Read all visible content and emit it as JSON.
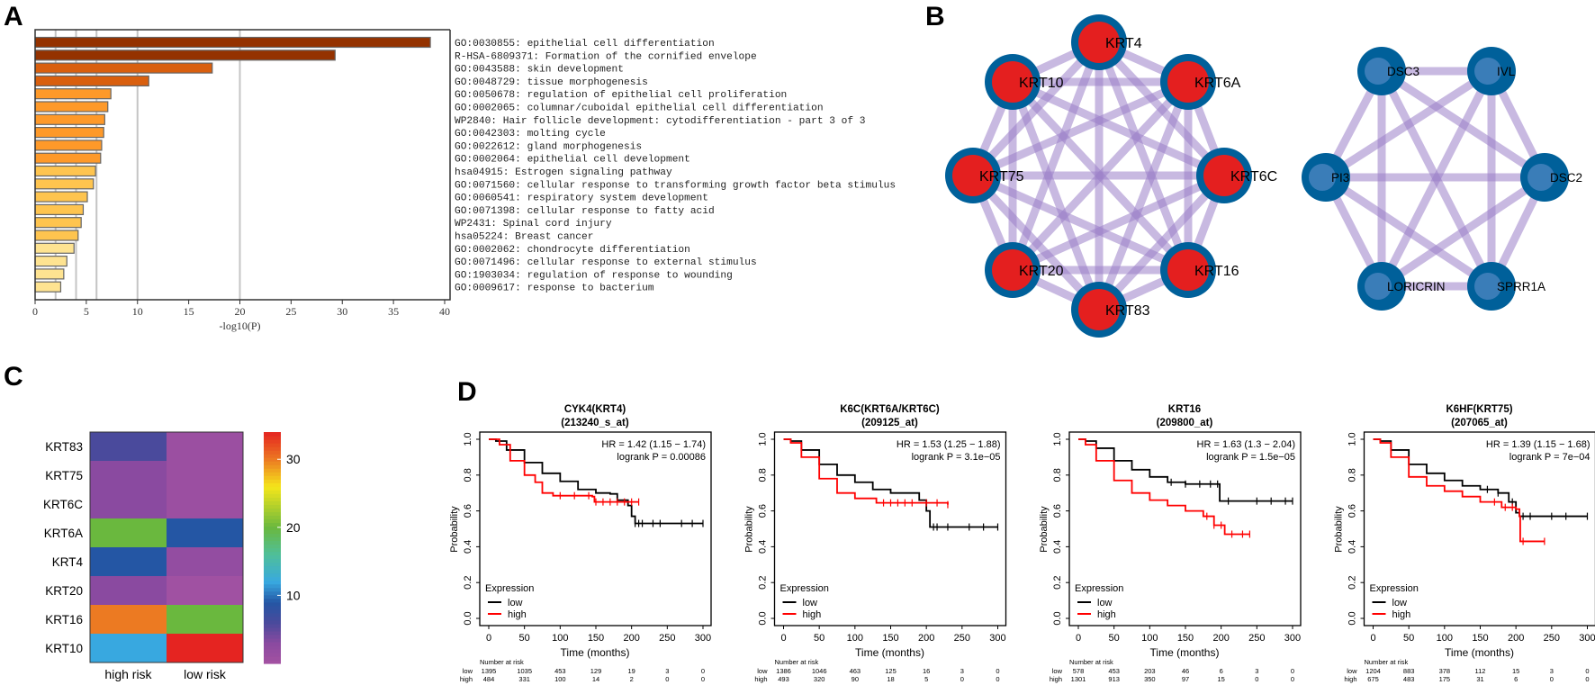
{
  "panel_labels": [
    "A",
    "B",
    "C",
    "D"
  ],
  "colors": {
    "bar_tiers": [
      "#943200",
      "#d95f0e",
      "#fe9929",
      "#fec44f",
      "#fee391"
    ],
    "node_outer": "#00609a",
    "node_inner_blue": "#3a7db8",
    "node_inner_red": "#e41f1f",
    "edge": "#9b7fc8",
    "km_low": "#000000",
    "km_high": "#ff0000"
  },
  "chart_data": [
    {
      "id": "A",
      "type": "bar",
      "orientation": "horizontal",
      "xlabel": "-log10(P)",
      "xlim": [
        0,
        40
      ],
      "xticks": [
        0,
        5,
        10,
        15,
        20,
        25,
        30,
        35,
        40
      ],
      "gridlines": [
        2,
        4,
        6,
        10,
        20
      ],
      "categories": [
        "GO:0030855: epithelial cell differentiation",
        "R-HSA-6809371: Formation of the cornified envelope",
        "GO:0043588: skin development",
        "GO:0048729: tissue morphogenesis",
        "GO:0050678: regulation of epithelial cell proliferation",
        "GO:0002065: columnar/cuboidal epithelial cell differentiation",
        "WP2840: Hair follicle development: cytodifferentiation - part 3 of 3",
        "GO:0042303: molting cycle",
        "GO:0022612: gland morphogenesis",
        "GO:0002064: epithelial cell development",
        "hsa04915: Estrogen signaling pathway",
        "GO:0071560: cellular response to transforming growth factor beta stimulus",
        "GO:0060541: respiratory system development",
        "GO:0071398: cellular response to fatty acid",
        "WP2431: Spinal cord injury",
        "hsa05224: Breast cancer",
        "GO:0002062: chondrocyte differentiation",
        "GO:0071496: cellular response to external stimulus",
        "GO:1903034: regulation of response to wounding",
        "GO:0009617: response to bacterium"
      ],
      "values": [
        38.6,
        29.3,
        17.3,
        11.1,
        7.4,
        7.1,
        6.8,
        6.7,
        6.5,
        6.4,
        5.9,
        5.7,
        5.1,
        4.7,
        4.5,
        4.2,
        3.8,
        3.1,
        2.8,
        2.5
      ],
      "color_tier": [
        0,
        0,
        1,
        1,
        2,
        2,
        2,
        2,
        2,
        2,
        3,
        3,
        3,
        3,
        3,
        3,
        4,
        4,
        4,
        4
      ]
    },
    {
      "id": "C",
      "type": "heatmap",
      "rows": [
        "KRT83",
        "KRT75",
        "KRT6C",
        "KRT6A",
        "KRT4",
        "KRT20",
        "KRT16",
        "KRT10"
      ],
      "columns": [
        "high risk",
        "low risk"
      ],
      "values": [
        [
          6,
          1
        ],
        [
          3,
          1
        ],
        [
          3,
          1
        ],
        [
          20,
          9
        ],
        [
          9,
          2
        ],
        [
          3,
          0.5
        ],
        [
          30,
          20
        ],
        [
          12,
          34
        ]
      ],
      "colorbar_range": [
        0,
        34
      ],
      "colorbar_ticks": [
        10,
        20,
        30
      ],
      "colormap": [
        [
          0,
          "#a452a2"
        ],
        [
          3,
          "#8a4aa0"
        ],
        [
          6,
          "#4a4a9c"
        ],
        [
          9,
          "#2456a4"
        ],
        [
          12,
          "#38a8e0"
        ],
        [
          16,
          "#4fbf9a"
        ],
        [
          20,
          "#6ab83e"
        ],
        [
          26,
          "#f5e61a"
        ],
        [
          30,
          "#ec7a22"
        ],
        [
          34,
          "#e52421"
        ]
      ]
    },
    {
      "id": "D1",
      "type": "line",
      "subtype": "kaplan-meier",
      "title": [
        "CYK4(KRT4)",
        "(213240_s_at)"
      ],
      "hr_text": "HR = 1.42 (1.15 − 1.74)",
      "p_text": "logrank P = 0.00086",
      "xlabel": "Time (months)",
      "ylabel": "Probability",
      "xlim": [
        0,
        300
      ],
      "ylim": [
        0,
        1
      ],
      "xticks": [
        "0",
        "50",
        "100",
        "150",
        "200",
        "250",
        "300"
      ],
      "yticks": [
        "0.0",
        "0.2",
        "0.4",
        "0.6",
        "0.8",
        "1.0"
      ],
      "legend_title": "Expression",
      "legend": [
        "low",
        "high"
      ],
      "series": [
        {
          "name": "low",
          "points": [
            [
              0,
              1
            ],
            [
              10,
              0.99
            ],
            [
              25,
              0.94
            ],
            [
              50,
              0.87
            ],
            [
              75,
              0.81
            ],
            [
              100,
              0.765
            ],
            [
              125,
              0.72
            ],
            [
              150,
              0.7
            ],
            [
              170,
              0.695
            ],
            [
              180,
              0.66
            ],
            [
              195,
              0.63
            ],
            [
              200,
              0.57
            ],
            [
              205,
              0.53
            ],
            [
              300,
              0.53
            ]
          ],
          "censor": [
            205,
            210,
            215,
            230,
            240,
            270,
            285,
            300
          ]
        },
        {
          "name": "high",
          "points": [
            [
              0,
              1
            ],
            [
              15,
              0.97
            ],
            [
              30,
              0.88
            ],
            [
              50,
              0.8
            ],
            [
              65,
              0.76
            ],
            [
              75,
              0.7
            ],
            [
              90,
              0.685
            ],
            [
              145,
              0.68
            ],
            [
              148,
              0.65
            ],
            [
              210,
              0.65
            ]
          ],
          "censor": [
            100,
            120,
            140,
            150,
            160,
            170,
            180,
            190,
            200,
            210
          ]
        }
      ],
      "risk_title": "Number at risk",
      "risk_labels": [
        "low",
        "high"
      ],
      "risk": {
        "low": [
          "1395",
          "1035",
          "453",
          "129",
          "19",
          "3",
          "0"
        ],
        "high": [
          "484",
          "331",
          "100",
          "14",
          "2",
          "0",
          "0"
        ]
      }
    },
    {
      "id": "D2",
      "type": "line",
      "subtype": "kaplan-meier",
      "title": [
        "K6C(KRT6A/KRT6C)",
        "(209125_at)"
      ],
      "hr_text": "HR = 1.53 (1.25 − 1.88)",
      "p_text": "logrank P = 3.1e−05",
      "xlabel": "Time (months)",
      "ylabel": "Probability",
      "xlim": [
        0,
        300
      ],
      "ylim": [
        0,
        1
      ],
      "xticks": [
        "0",
        "50",
        "100",
        "150",
        "200",
        "250",
        "300"
      ],
      "yticks": [
        "0.0",
        "0.2",
        "0.4",
        "0.6",
        "0.8",
        "1.0"
      ],
      "legend_title": "Expression",
      "legend": [
        "low",
        "high"
      ],
      "series": [
        {
          "name": "low",
          "points": [
            [
              0,
              1
            ],
            [
              10,
              0.99
            ],
            [
              25,
              0.94
            ],
            [
              50,
              0.86
            ],
            [
              75,
              0.8
            ],
            [
              100,
              0.76
            ],
            [
              125,
              0.72
            ],
            [
              150,
              0.7
            ],
            [
              190,
              0.66
            ],
            [
              200,
              0.6
            ],
            [
              205,
              0.51
            ],
            [
              300,
              0.51
            ]
          ],
          "censor": [
            210,
            215,
            230,
            260,
            280,
            300
          ]
        },
        {
          "name": "high",
          "points": [
            [
              0,
              1
            ],
            [
              10,
              0.98
            ],
            [
              25,
              0.9
            ],
            [
              50,
              0.78
            ],
            [
              75,
              0.7
            ],
            [
              100,
              0.67
            ],
            [
              130,
              0.645
            ],
            [
              230,
              0.635
            ]
          ],
          "censor": [
            140,
            150,
            160,
            170,
            180,
            200,
            215,
            230
          ]
        }
      ],
      "risk_title": "Number at risk",
      "risk_labels": [
        "low",
        "high"
      ],
      "risk": {
        "low": [
          "1386",
          "1046",
          "463",
          "125",
          "16",
          "3",
          "0"
        ],
        "high": [
          "493",
          "320",
          "90",
          "18",
          "5",
          "0",
          "0"
        ]
      }
    },
    {
      "id": "D3",
      "type": "line",
      "subtype": "kaplan-meier",
      "title": [
        "KRT16",
        "(209800_at)"
      ],
      "hr_text": "HR = 1.63 (1.3 − 2.04)",
      "p_text": "logrank P = 1.5e−05",
      "xlabel": "Time (months)",
      "ylabel": "Probability",
      "xlim": [
        0,
        300
      ],
      "ylim": [
        0,
        1
      ],
      "xticks": [
        "0",
        "50",
        "100",
        "150",
        "200",
        "250",
        "300"
      ],
      "yticks": [
        "0.0",
        "0.2",
        "0.4",
        "0.6",
        "0.8",
        "1.0"
      ],
      "legend_title": "Expression",
      "legend": [
        "low",
        "high"
      ],
      "series": [
        {
          "name": "low",
          "points": [
            [
              0,
              1
            ],
            [
              10,
              0.99
            ],
            [
              25,
              0.95
            ],
            [
              50,
              0.88
            ],
            [
              75,
              0.83
            ],
            [
              100,
              0.79
            ],
            [
              125,
              0.76
            ],
            [
              150,
              0.75
            ],
            [
              196,
              0.75
            ],
            [
              198,
              0.655
            ],
            [
              300,
              0.655
            ]
          ],
          "censor": [
            130,
            150,
            170,
            185,
            195,
            210,
            250,
            270,
            290,
            300
          ]
        },
        {
          "name": "high",
          "points": [
            [
              0,
              1
            ],
            [
              10,
              0.97
            ],
            [
              25,
              0.88
            ],
            [
              50,
              0.77
            ],
            [
              75,
              0.7
            ],
            [
              100,
              0.66
            ],
            [
              125,
              0.63
            ],
            [
              150,
              0.6
            ],
            [
              175,
              0.57
            ],
            [
              190,
              0.52
            ],
            [
              205,
              0.47
            ],
            [
              240,
              0.47
            ]
          ],
          "censor": [
            180,
            190,
            200,
            215,
            230,
            240
          ]
        }
      ],
      "risk_title": "Number at risk",
      "risk_labels": [
        "low",
        "high"
      ],
      "risk": {
        "low": [
          "578",
          "453",
          "203",
          "46",
          "6",
          "3",
          "0"
        ],
        "high": [
          "1301",
          "913",
          "350",
          "97",
          "15",
          "0",
          "0"
        ]
      }
    },
    {
      "id": "D4",
      "type": "line",
      "subtype": "kaplan-meier",
      "title": [
        "K6HF(KRT75)",
        "(207065_at)"
      ],
      "hr_text": "HR = 1.39 (1.15 − 1.68)",
      "p_text": "logrank P = 7e−04",
      "xlabel": "Time (months)",
      "ylabel": "Probability",
      "xlim": [
        0,
        300
      ],
      "ylim": [
        0,
        1
      ],
      "xticks": [
        "0",
        "50",
        "100",
        "150",
        "200",
        "250",
        "300"
      ],
      "yticks": [
        "0.0",
        "0.2",
        "0.4",
        "0.6",
        "0.8",
        "1.0"
      ],
      "legend_title": "Expression",
      "legend": [
        "low",
        "high"
      ],
      "series": [
        {
          "name": "low",
          "points": [
            [
              0,
              1
            ],
            [
              10,
              0.99
            ],
            [
              25,
              0.94
            ],
            [
              50,
              0.86
            ],
            [
              75,
              0.81
            ],
            [
              100,
              0.77
            ],
            [
              125,
              0.74
            ],
            [
              150,
              0.72
            ],
            [
              175,
              0.7
            ],
            [
              190,
              0.65
            ],
            [
              200,
              0.59
            ],
            [
              205,
              0.57
            ],
            [
              300,
              0.57
            ]
          ],
          "censor": [
            160,
            175,
            195,
            210,
            220,
            250,
            270,
            300
          ]
        },
        {
          "name": "high",
          "points": [
            [
              0,
              1
            ],
            [
              10,
              0.98
            ],
            [
              25,
              0.9
            ],
            [
              50,
              0.79
            ],
            [
              75,
              0.74
            ],
            [
              100,
              0.71
            ],
            [
              125,
              0.68
            ],
            [
              150,
              0.65
            ],
            [
              180,
              0.62
            ],
            [
              200,
              0.61
            ],
            [
              205,
              0.57
            ],
            [
              206,
              0.43
            ],
            [
              240,
              0.43
            ]
          ],
          "censor": [
            170,
            185,
            195,
            210,
            240
          ]
        }
      ],
      "risk_title": "Number at risk",
      "risk_labels": [
        "low",
        "high"
      ],
      "risk": {
        "low": [
          "1204",
          "883",
          "378",
          "112",
          "15",
          "3",
          "0"
        ],
        "high": [
          "675",
          "483",
          "175",
          "31",
          "6",
          "0",
          "0"
        ]
      }
    }
  ],
  "network": {
    "keratin_cluster": {
      "nodes": [
        "KRT4",
        "KRT10",
        "KRT6A",
        "KRT75",
        "KRT6C",
        "KRT20",
        "KRT16",
        "KRT83"
      ],
      "fully_connected": true
    },
    "envelope_cluster": {
      "nodes": [
        "DSC3",
        "IVL",
        "PI3",
        "DSC2",
        "LORICRIN",
        "SPRR1A"
      ],
      "fully_connected": true
    }
  }
}
